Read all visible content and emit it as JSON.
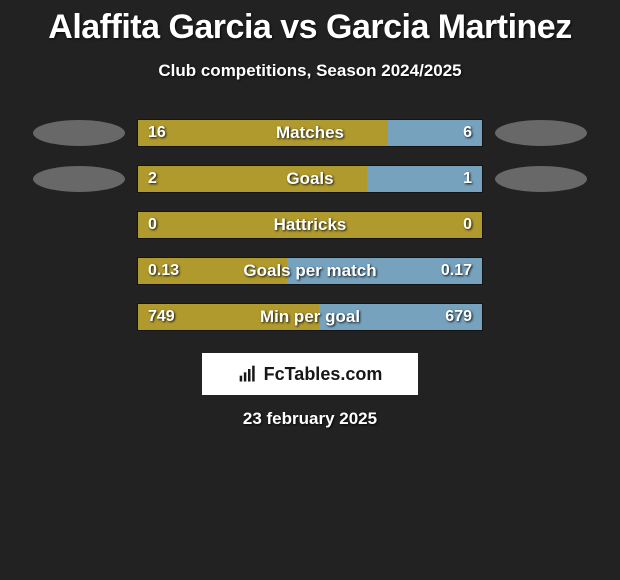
{
  "title": "Alaffita Garcia vs Garcia Martinez",
  "subtitle": "Club competitions, Season 2024/2025",
  "date": "23 february 2025",
  "logo": {
    "text": "FcTables.com"
  },
  "colors": {
    "background": "#222222",
    "bar_left": "#b09a2e",
    "bar_right": "#76a2be",
    "badge": "#686868",
    "text": "#ffffff",
    "logo_bg": "#ffffff",
    "logo_text": "#171717"
  },
  "stats": [
    {
      "label": "Matches",
      "left_val": "16",
      "right_val": "6",
      "right_pct": 27.3,
      "show_badges": true
    },
    {
      "label": "Goals",
      "left_val": "2",
      "right_val": "1",
      "right_pct": 33.3,
      "show_badges": true
    },
    {
      "label": "Hattricks",
      "left_val": "0",
      "right_val": "0",
      "right_pct": 0,
      "show_badges": false
    },
    {
      "label": "Goals per match",
      "left_val": "0.13",
      "right_val": "0.17",
      "right_pct": 56.7,
      "show_badges": false
    },
    {
      "label": "Min per goal",
      "left_val": "749",
      "right_val": "679",
      "right_pct": 47.5,
      "show_badges": false
    }
  ]
}
